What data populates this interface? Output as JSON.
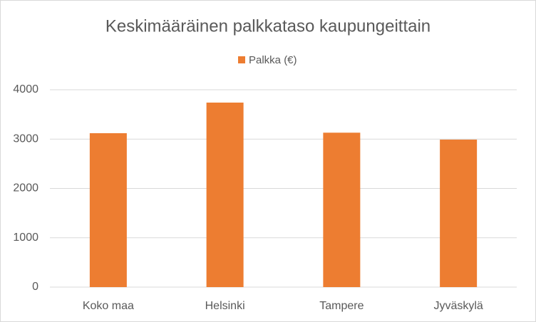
{
  "chart_data": {
    "type": "bar",
    "title": "Keskimääräinen palkkataso kaupungeittain",
    "categories": [
      "Koko maa",
      "Helsinki",
      "Tampere",
      "Jyväskylä"
    ],
    "series": [
      {
        "name": "Palkka (€)",
        "color": "#ed7d31",
        "values": [
          3120,
          3740,
          3130,
          2990
        ]
      }
    ],
    "ylim": [
      0,
      4000
    ],
    "yticks": [
      0,
      1000,
      2000,
      3000,
      4000
    ],
    "grid": true,
    "legend": "top"
  }
}
